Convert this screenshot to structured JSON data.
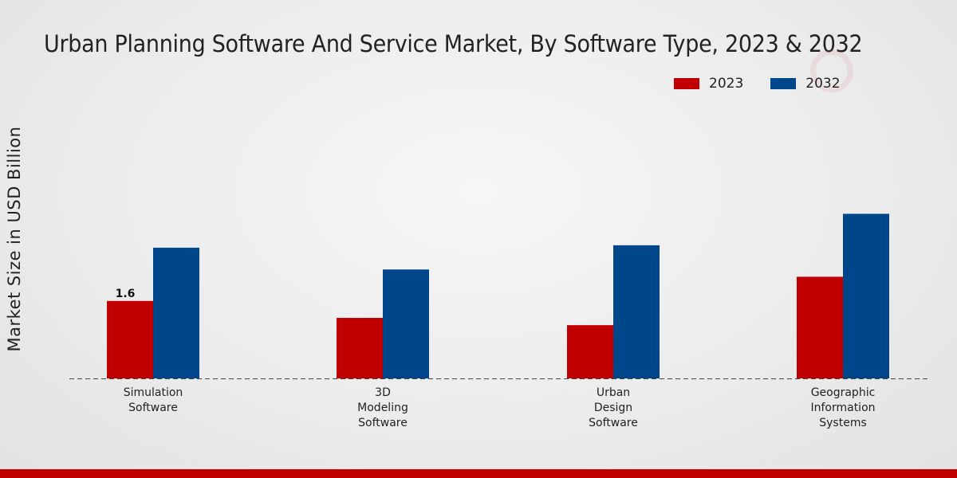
{
  "chart_data": {
    "type": "bar",
    "title": "Urban Planning Software And Service Market, By Software Type, 2023 & 2032",
    "xlabel": "",
    "ylabel": "Market Size in USD Billion",
    "categories": [
      [
        "Simulation",
        "Software"
      ],
      [
        "3D",
        "Modeling",
        "Software"
      ],
      [
        "Urban",
        "Design",
        "Software"
      ],
      [
        "Geographic",
        "Information",
        "Systems"
      ]
    ],
    "series": [
      {
        "name": "2023",
        "color": "#c00000",
        "values": [
          1.6,
          1.25,
          1.1,
          2.1
        ]
      },
      {
        "name": "2032",
        "color": "#00468b",
        "values": [
          2.7,
          2.25,
          2.75,
          3.4
        ]
      }
    ],
    "data_labels": [
      {
        "series": 0,
        "index": 0,
        "text": "1.6"
      }
    ],
    "ylim": [
      0,
      6.5
    ],
    "grid": false,
    "legend_position": "top-right"
  },
  "colors": {
    "accent": "#c00000",
    "secondary": "#00468b",
    "footer": "#c00000"
  }
}
